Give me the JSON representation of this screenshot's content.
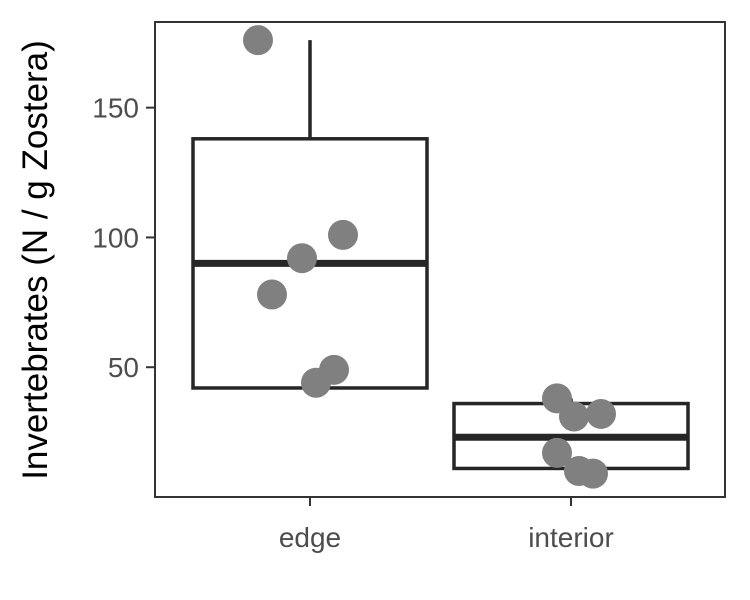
{
  "chart_data": {
    "type": "box",
    "title": "",
    "xlabel": "",
    "ylabel": "Invertebrates (N / g Zostera)",
    "ylim": [
      0,
      183
    ],
    "y_ticks": [
      50,
      100,
      150
    ],
    "y_tick_labels": [
      "50",
      "100",
      "150"
    ],
    "categories": [
      "edge",
      "interior"
    ],
    "boxes": [
      {
        "category": "edge",
        "q1": 42,
        "median": 90,
        "q3": 138,
        "whisker_low": 42,
        "whisker_high": 176
      },
      {
        "category": "interior",
        "q1": 11,
        "median": 23,
        "q3": 36,
        "whisker_low": 11,
        "whisker_high": 38
      }
    ],
    "points": [
      {
        "category": "edge",
        "y": 176
      },
      {
        "category": "edge",
        "y": 101
      },
      {
        "category": "edge",
        "y": 92
      },
      {
        "category": "edge",
        "y": 78
      },
      {
        "category": "edge",
        "y": 49
      },
      {
        "category": "edge",
        "y": 44
      },
      {
        "category": "interior",
        "y": 38
      },
      {
        "category": "interior",
        "y": 32
      },
      {
        "category": "interior",
        "y": 31
      },
      {
        "category": "interior",
        "y": 17
      },
      {
        "category": "interior",
        "y": 10
      },
      {
        "category": "interior",
        "y": 9
      }
    ],
    "grid": false,
    "colors": {
      "points": "#808080",
      "box": "#262626",
      "panel_border": "#333333"
    }
  }
}
